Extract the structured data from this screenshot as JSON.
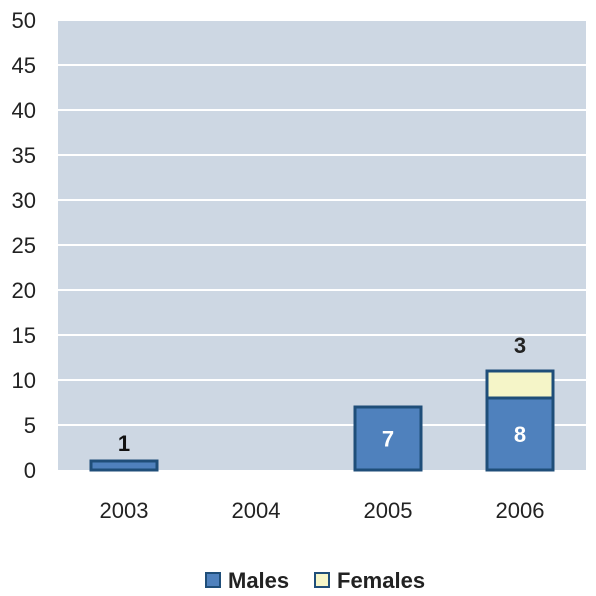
{
  "chart_data": {
    "type": "bar",
    "stacked": true,
    "categories": [
      "2003",
      "2004",
      "2005",
      "2006"
    ],
    "series": [
      {
        "name": "Males",
        "values": [
          1,
          0,
          7,
          8
        ],
        "color": "#4f81bd",
        "edge": "#1f4e79"
      },
      {
        "name": "Females",
        "values": [
          0,
          0,
          0,
          3
        ],
        "color": "#f5f5c8",
        "edge": "#1f4e79"
      }
    ],
    "data_labels": [
      {
        "category": "2003",
        "series": "Males",
        "text": "1",
        "position": "above"
      },
      {
        "category": "2005",
        "series": "Males",
        "text": "7",
        "position": "inside"
      },
      {
        "category": "2006",
        "series": "Males",
        "text": "8",
        "position": "inside"
      },
      {
        "category": "2006",
        "series": "Females",
        "text": "3",
        "position": "above"
      }
    ],
    "ylim": [
      0,
      50
    ],
    "yticks": [
      "0",
      "5",
      "10",
      "15",
      "20",
      "25",
      "30",
      "35",
      "40",
      "45",
      "50"
    ],
    "grid": true,
    "plot_background": "#cdd7e3",
    "legend_position": "bottom-center",
    "title": "",
    "xlabel": "",
    "ylabel": ""
  }
}
